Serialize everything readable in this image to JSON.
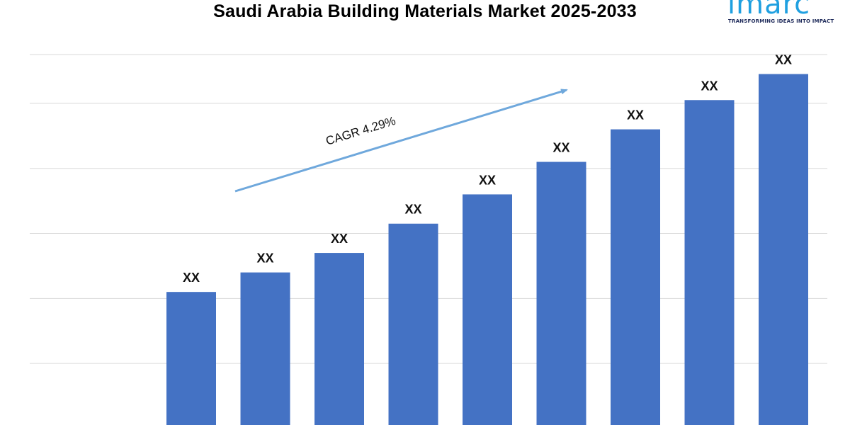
{
  "title": "Saudi Arabia Building Materials Market 2025-2033",
  "logo": {
    "wordmark": "imarc",
    "tagline": "TRANSFORMING IDEAS INTO IMPACT",
    "color": "#1fa0e0"
  },
  "chart_data": {
    "type": "bar",
    "title": "Saudi Arabia Building Materials Market 2025-2033",
    "categories": [
      "",
      "",
      "",
      "",
      "",
      "",
      "",
      "",
      ""
    ],
    "values": [
      21,
      24,
      27,
      31.5,
      36,
      41,
      46,
      50.5,
      54.5
    ],
    "value_labels": [
      "XX",
      "XX",
      "XX",
      "XX",
      "XX",
      "XX",
      "XX",
      "XX",
      "XX"
    ],
    "ylim": [
      0,
      57.5
    ],
    "gridlines": [
      0,
      10,
      20,
      30,
      40,
      50
    ],
    "grid": true,
    "legend": "none",
    "bar_color": "#4472c4",
    "annotation": {
      "text": "CAGR 4.29%",
      "arrow_color": "#6fa8dc",
      "type": "trend-arrow"
    }
  }
}
